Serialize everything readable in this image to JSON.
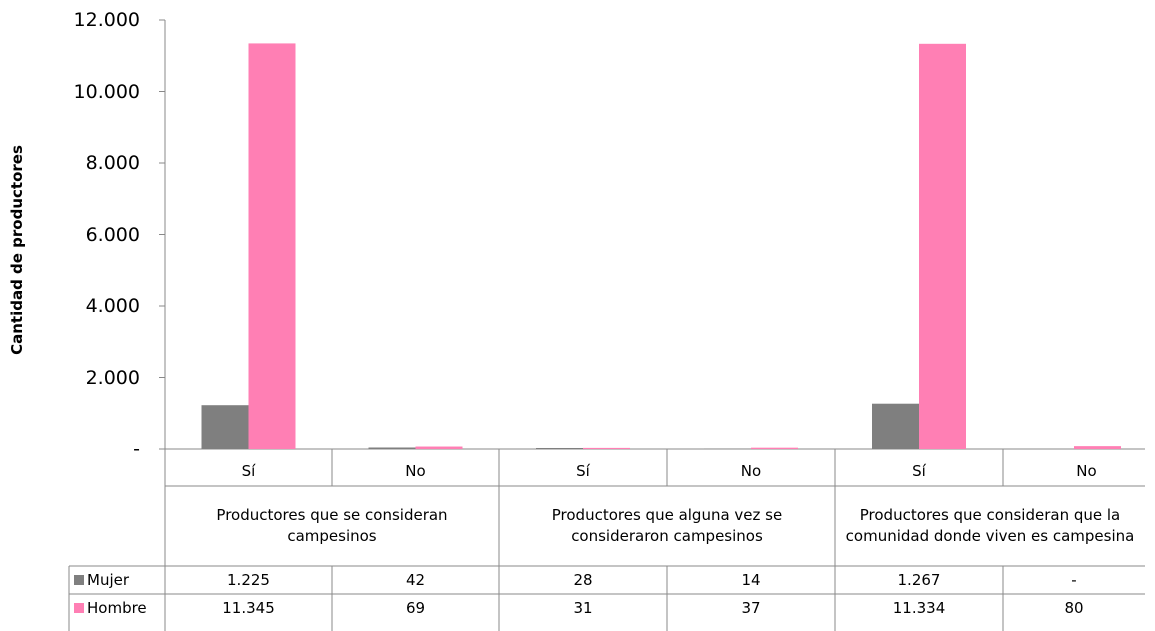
{
  "chart_data": {
    "type": "bar",
    "ylabel": "Cantidad  de productores",
    "ylim": [
      0,
      12000
    ],
    "yticks": [
      "-",
      "2.000",
      "4.000",
      "6.000",
      "8.000",
      "10.000",
      "12.000"
    ],
    "groups": [
      "Productores que se consideran campesinos",
      "Productores que alguna vez se consideraron campesinos",
      "Productores que consideran que la comunidad donde viven es campesina"
    ],
    "categories": [
      "Sí",
      "No",
      "Sí",
      "No",
      "Sí",
      "No"
    ],
    "series": [
      {
        "name": "Mujer",
        "color": "#7f7f7f",
        "values": [
          1225,
          42,
          28,
          14,
          1267,
          0
        ],
        "labels": [
          "1.225",
          "42",
          "28",
          "14",
          "1.267",
          "-"
        ]
      },
      {
        "name": "Hombre",
        "color": "#ff7fb4",
        "values": [
          11345,
          69,
          31,
          37,
          11334,
          80
        ],
        "labels": [
          "11.345",
          "69",
          "31",
          "37",
          "11.334",
          "80"
        ]
      }
    ]
  }
}
